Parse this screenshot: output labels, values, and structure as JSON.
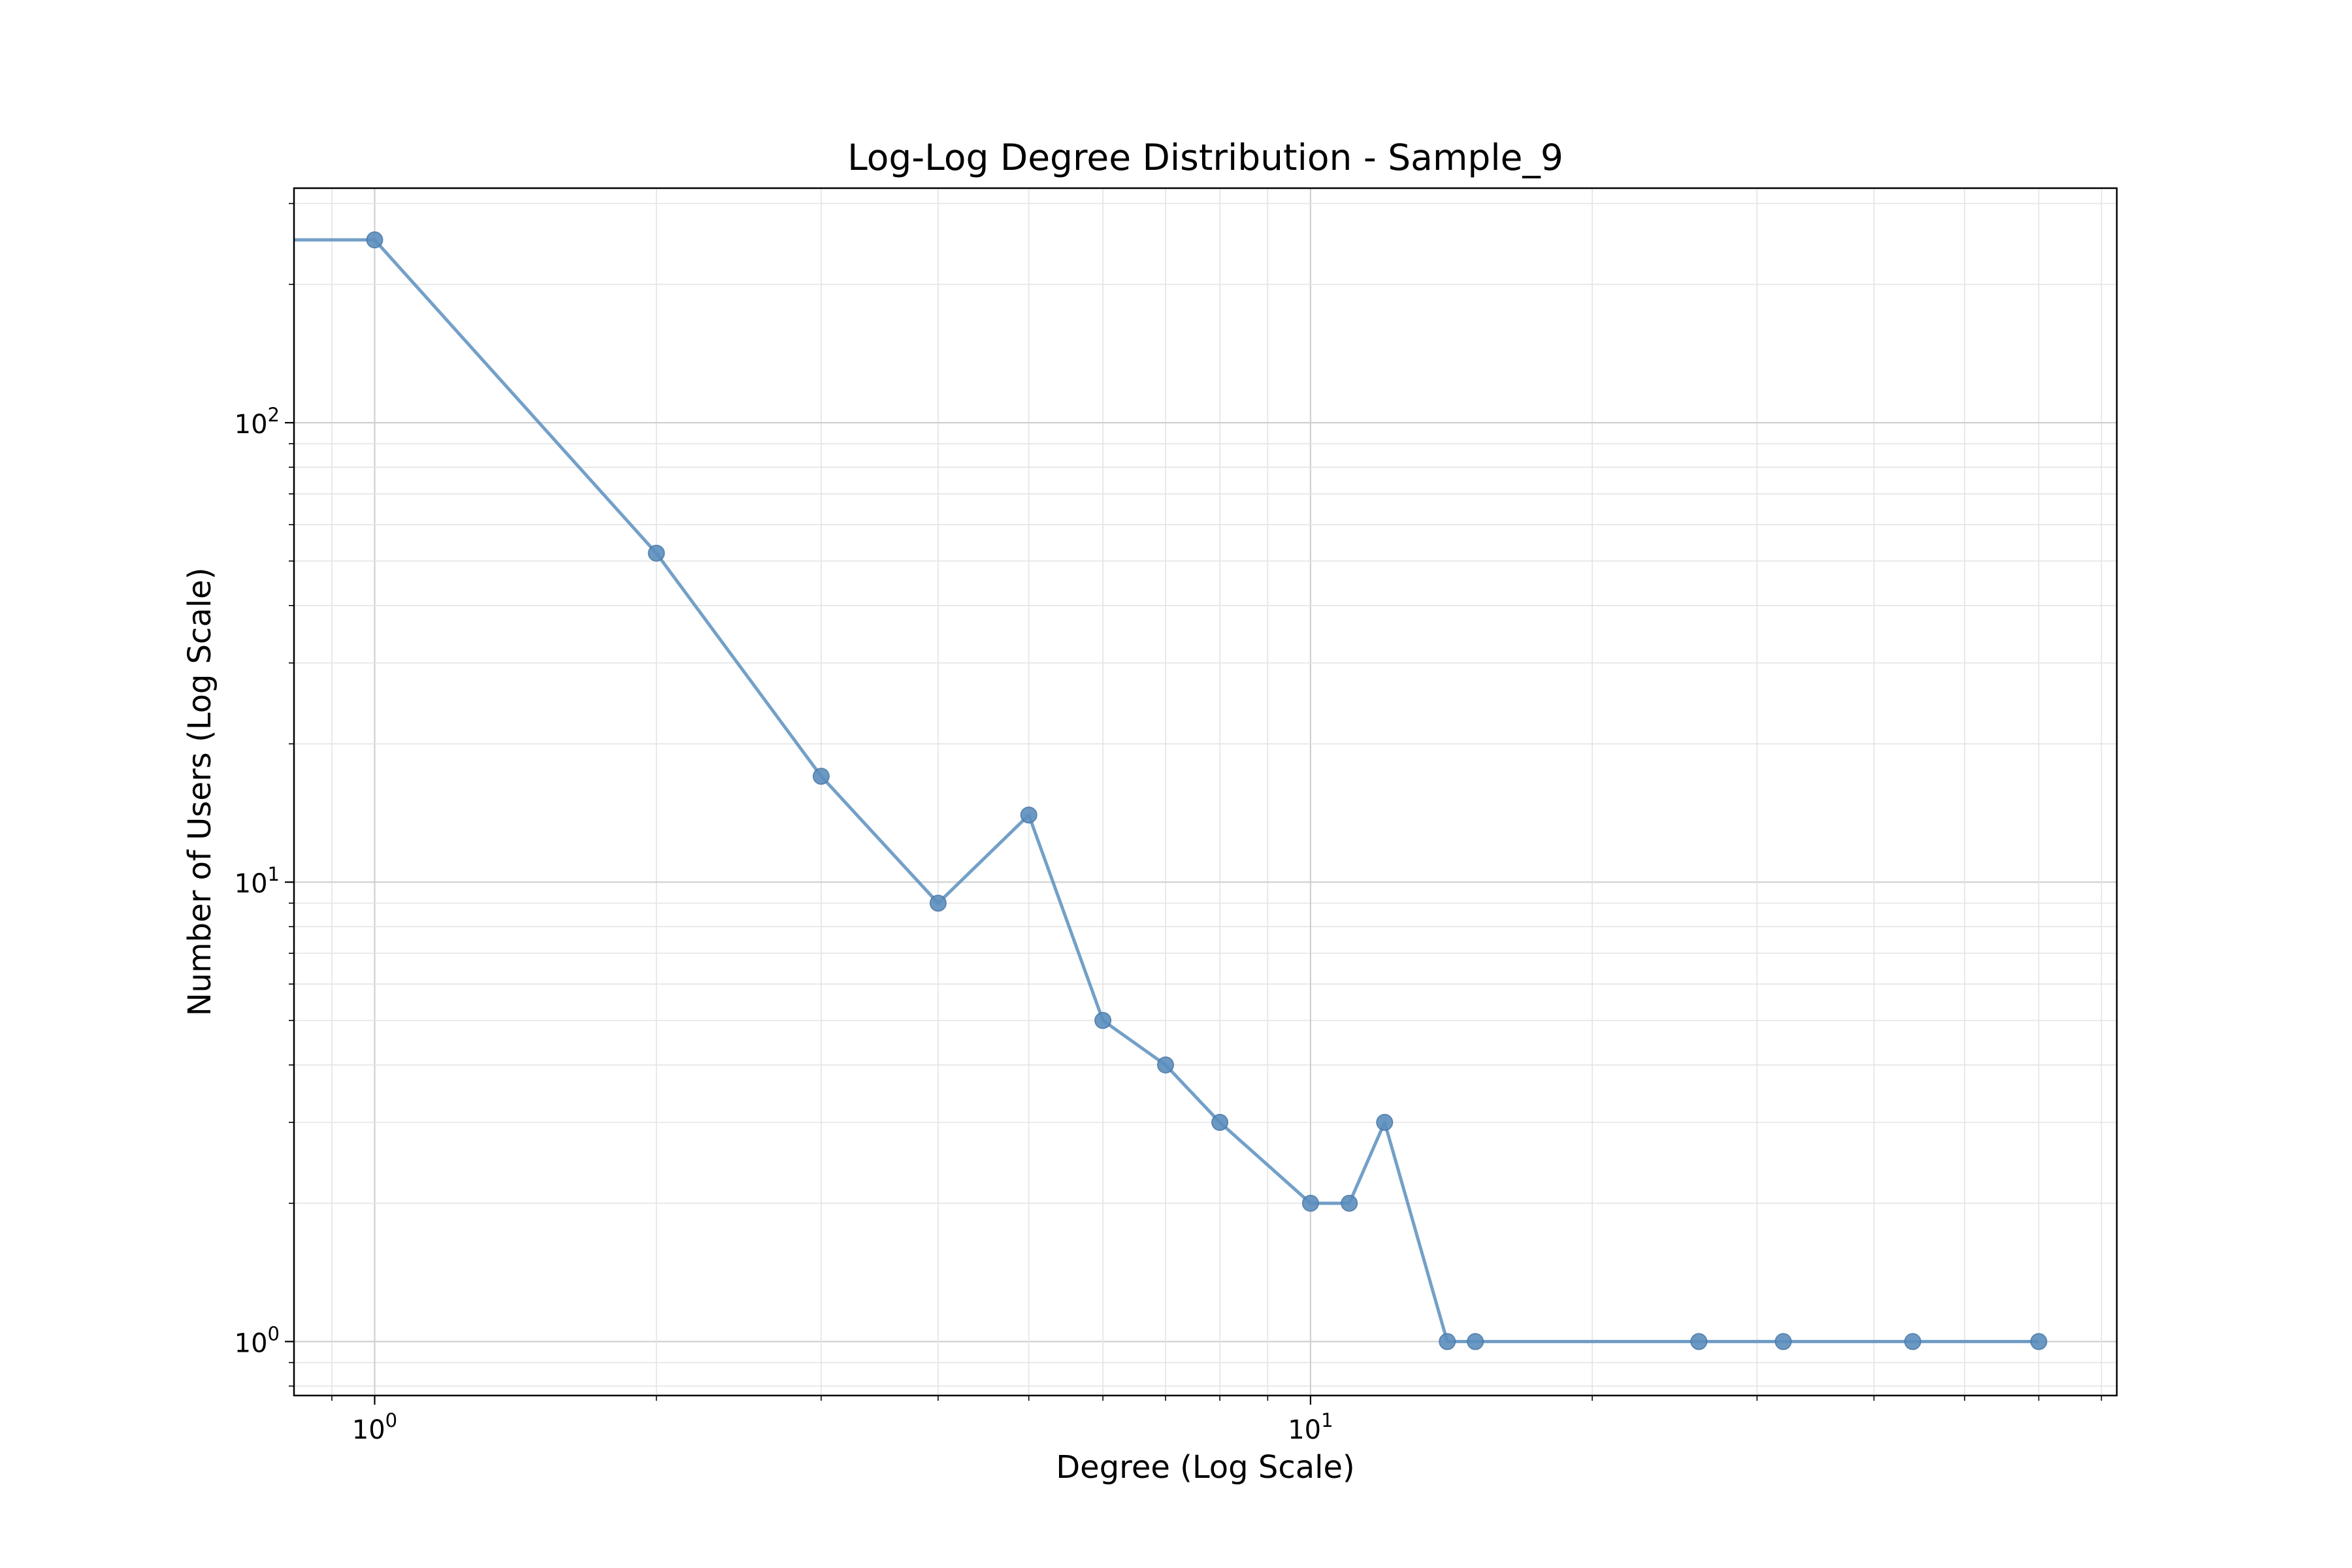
{
  "chart_data": {
    "type": "line",
    "title": "Log-Log Degree Distribution - Sample_9",
    "xlabel": "Degree (Log Scale)",
    "ylabel": "Number of Users (Log Scale)",
    "xscale": "log",
    "yscale": "log",
    "xlim": [
      0.82,
      72.7
    ],
    "ylim": [
      0.763,
      324
    ],
    "grid": true,
    "legend": "none",
    "x_ticks": [
      {
        "base": "10",
        "exp": "0",
        "value": 1
      },
      {
        "base": "10",
        "exp": "1",
        "value": 10
      }
    ],
    "y_ticks": [
      {
        "base": "10",
        "exp": "0",
        "value": 1
      },
      {
        "base": "10",
        "exp": "1",
        "value": 10
      },
      {
        "base": "10",
        "exp": "2",
        "value": 100
      }
    ],
    "series": [
      {
        "color": "#5b8fbe",
        "x": [
          0,
          1,
          2,
          3,
          4,
          5,
          6,
          7,
          8,
          10,
          11,
          12,
          14,
          15,
          26,
          32,
          44,
          60
        ],
        "y": [
          250,
          250,
          52,
          17,
          9,
          14,
          5,
          4,
          3,
          2,
          2,
          3,
          1,
          1,
          1,
          1,
          1,
          1
        ]
      }
    ]
  }
}
